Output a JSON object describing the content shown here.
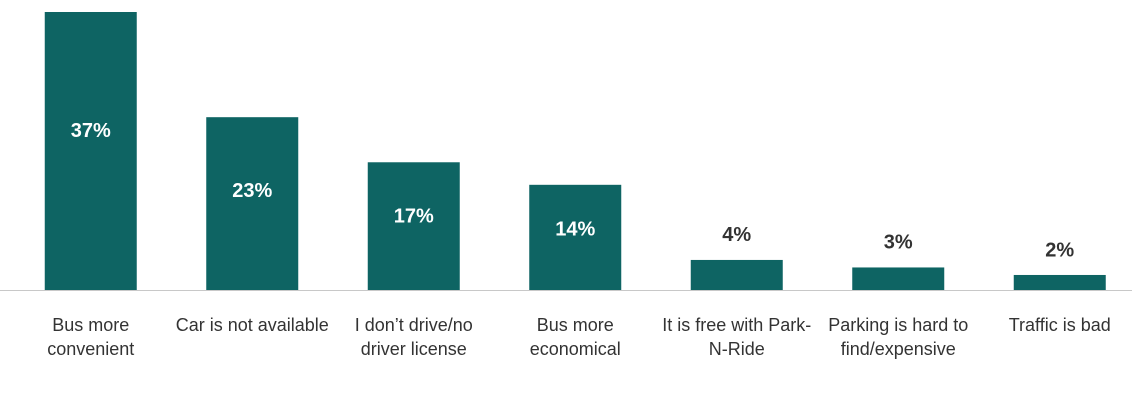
{
  "chart_data": {
    "type": "bar",
    "categories": [
      "Bus more convenient",
      "Car is not available",
      "I don’t drive/no driver license",
      "Bus more economical",
      "It is free with Park-N-Ride",
      "Parking is hard to find/expensive",
      "Traffic is bad"
    ],
    "values": [
      37,
      23,
      17,
      14,
      4,
      3,
      2
    ],
    "value_labels": [
      "37%",
      "23%",
      "17%",
      "14%",
      "4%",
      "3%",
      "2%"
    ],
    "color": "#0e6463"
  }
}
